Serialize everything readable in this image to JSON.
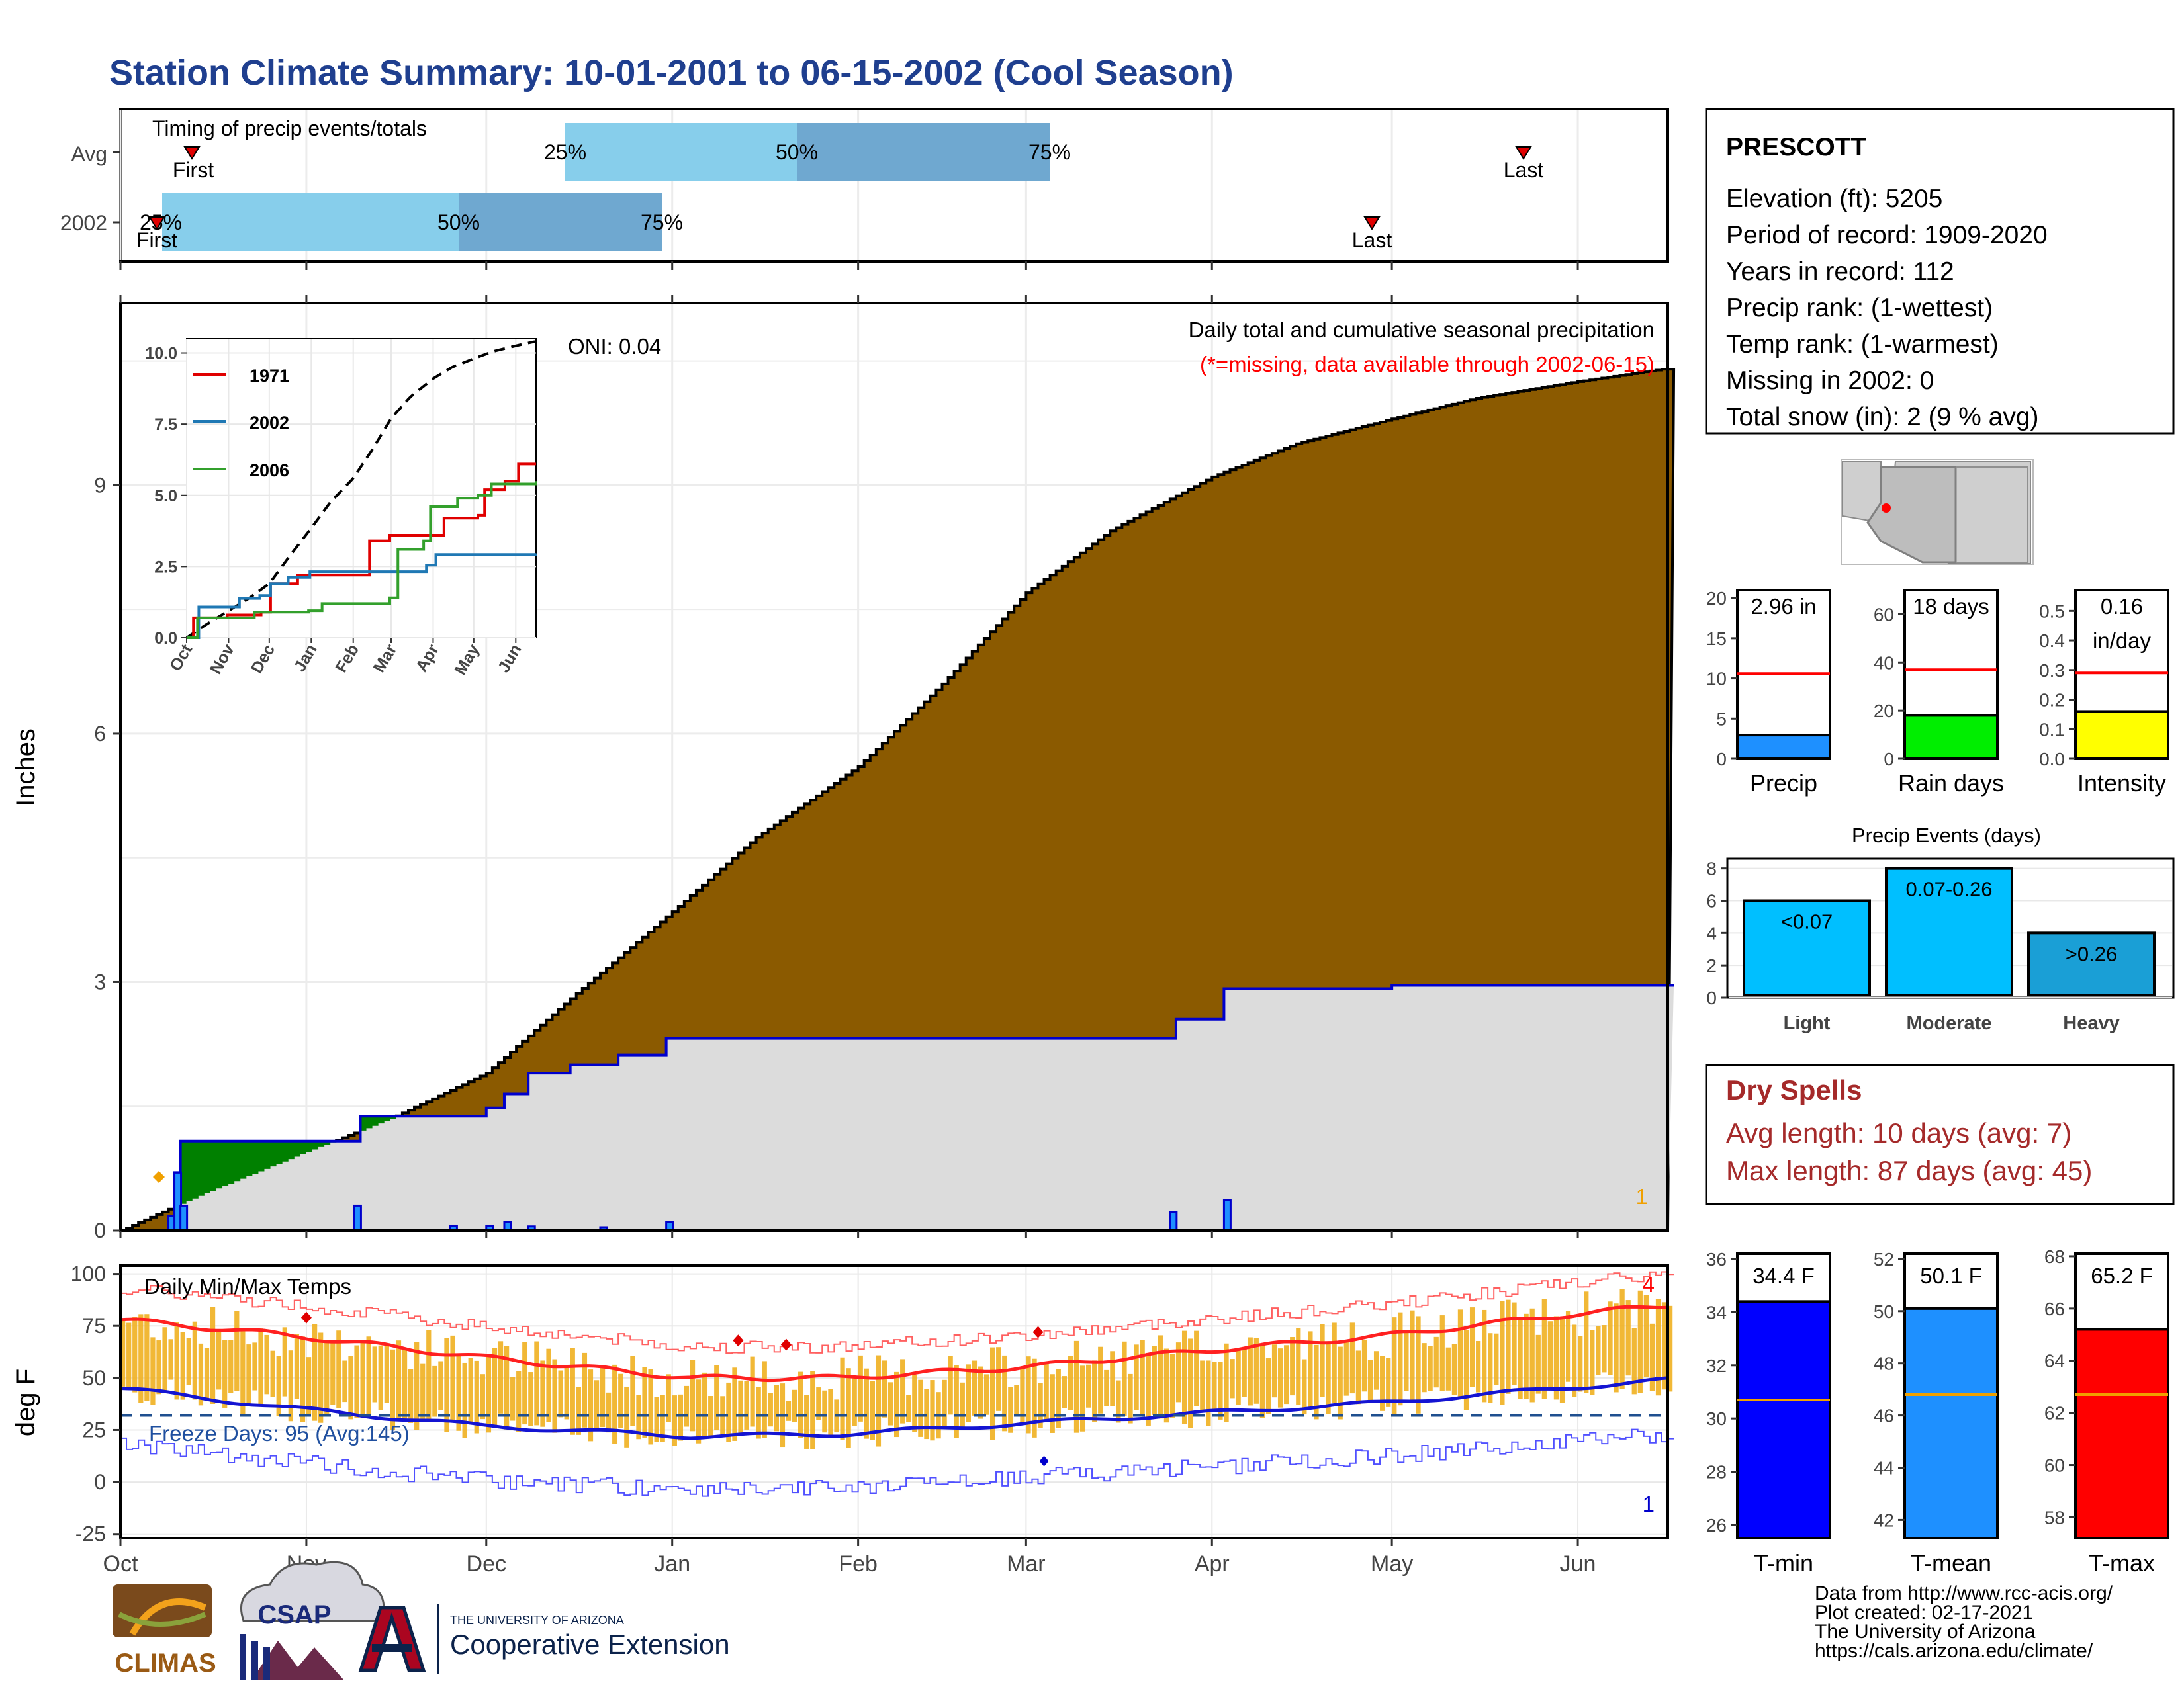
{
  "title": "Station Climate Summary: 10-01-2001 to 06-15-2002 (Cool Season)",
  "colors": {
    "title": "#1f3f8f",
    "precip_fill": "#8b5a00",
    "avg_fill": "#dcdcdc",
    "wet_fill": "#008000",
    "year_line": "#0000cc",
    "q_light": "#87ceeb",
    "q_dark": "#6fa8d0",
    "marker": "#e00000",
    "tmax_bar": "#f0b020",
    "tmin": "#1414d2",
    "tmax": "#ff2020",
    "dry": "#a52a2a"
  },
  "months": [
    "Oct",
    "Nov",
    "Dec",
    "Jan",
    "Feb",
    "Mar",
    "Apr",
    "May",
    "Jun"
  ],
  "timing": {
    "title": "Timing of precip events/totals",
    "rows": [
      {
        "label": "Avg",
        "q25": "25%",
        "q50": "50%",
        "q75": "75%",
        "first": "First",
        "last": "Last"
      },
      {
        "label": "2002",
        "q25": "25%",
        "q50": "50%",
        "q75": "75%",
        "first": "First",
        "last": "Last"
      }
    ]
  },
  "chart_data": [
    {
      "type": "area",
      "title": "Daily total and cumulative seasonal precipitation",
      "subtitle": "(*=missing, data available through 2002-06-15)",
      "ylabel": "Inches",
      "yticks": [
        "0",
        "3",
        "6",
        "9"
      ],
      "ylim": [
        0,
        11.2
      ],
      "annotations": {
        "oni": "ONI: 0.04",
        "missing_count": "1"
      },
      "cumulative_avg": {
        "dates": [
          "10-01",
          "10-15",
          "11-01",
          "11-15",
          "12-01",
          "12-15",
          "01-01",
          "01-15",
          "02-01",
          "02-15",
          "03-01",
          "03-15",
          "04-01",
          "04-15",
          "05-01",
          "05-15",
          "06-01",
          "06-15"
        ],
        "values": [
          0,
          0.45,
          0.95,
          1.35,
          1.9,
          2.8,
          3.85,
          4.75,
          5.6,
          6.6,
          7.7,
          8.45,
          9.1,
          9.5,
          9.8,
          10.05,
          10.25,
          10.4
        ]
      },
      "cumulative_2002": {
        "dates": [
          "10-01",
          "10-09",
          "10-10",
          "10-11",
          "11-09",
          "11-10",
          "11-24",
          "12-01",
          "12-04",
          "12-08",
          "12-15",
          "12-23",
          "12-31",
          "03-25",
          "03-26",
          "04-02",
          "04-03",
          "05-01",
          "06-15"
        ],
        "values": [
          0,
          0,
          0.7,
          1.08,
          1.08,
          1.38,
          1.38,
          1.48,
          1.65,
          1.9,
          2.0,
          2.12,
          2.32,
          2.32,
          2.55,
          2.55,
          2.92,
          2.96,
          2.96
        ]
      },
      "daily_2002": {
        "dates": [
          "10-09",
          "10-10",
          "10-11",
          "11-09",
          "11-25",
          "12-01",
          "12-04",
          "12-08",
          "12-20",
          "12-31",
          "03-25",
          "04-03"
        ],
        "values": [
          0.18,
          0.7,
          0.3,
          0.3,
          0.06,
          0.06,
          0.1,
          0.05,
          0.04,
          0.1,
          0.22,
          0.37
        ]
      }
    },
    {
      "type": "line",
      "title": "",
      "series": [
        {
          "name": "1971"
        },
        {
          "name": "2002"
        },
        {
          "name": "2006"
        }
      ],
      "yticks": [
        "0.0",
        "2.5",
        "5.0",
        "7.5",
        "10.0"
      ],
      "xticks": [
        "Oct",
        "Nov",
        "Dec",
        "Jan",
        "Feb",
        "Mar",
        "Apr",
        "May",
        "Jun"
      ],
      "ylim": [
        0,
        10.5
      ]
    },
    {
      "type": "line",
      "title": "Daily Min/Max Temps",
      "ylabel": "deg F",
      "yticks": [
        "-25",
        "0",
        "25",
        "50",
        "75",
        "100"
      ],
      "ylim": [
        -27,
        104
      ],
      "annotations": {
        "freeze": "Freeze Days: 95 (Avg:145)",
        "record_high_count": "4",
        "record_low_count": "1"
      }
    },
    {
      "type": "bar",
      "panels": [
        {
          "label": "Precip",
          "value_text": "2.96 in",
          "value": 2.96,
          "avg": 10.6,
          "ylim": [
            0,
            21
          ],
          "yticks": [
            "0",
            "5",
            "10",
            "15",
            "20"
          ],
          "color": "#1e90ff"
        },
        {
          "label": "Rain days",
          "value_text": "18 days",
          "value": 18,
          "avg": 37,
          "ylim": [
            0,
            70
          ],
          "yticks": [
            "0",
            "20",
            "40",
            "60"
          ],
          "color": "#00ee00"
        },
        {
          "label": "Intensity",
          "value_text": "0.16",
          "value_text2": "in/day",
          "value": 0.16,
          "avg": 0.29,
          "ylim": [
            0,
            0.57
          ],
          "yticks": [
            "0.0",
            "0.1",
            "0.2",
            "0.3",
            "0.4",
            "0.5"
          ],
          "color": "#ffff00"
        }
      ]
    },
    {
      "type": "bar",
      "title": "Precip Events (days)",
      "categories": [
        "Light",
        "Moderate",
        "Heavy"
      ],
      "values": [
        6,
        8,
        4
      ],
      "bar_labels": [
        "<0.07",
        "0.07-0.26",
        ">0.26"
      ],
      "yticks": [
        "0",
        "2",
        "4",
        "6",
        "8"
      ],
      "ylim": [
        0,
        8.6
      ]
    },
    {
      "type": "bar",
      "panels": [
        {
          "label": "T-min",
          "value_text": "34.4 F",
          "value": 34.4,
          "avg": 30.7,
          "ylim": [
            25.5,
            36.2
          ],
          "yticks": [
            "26",
            "28",
            "30",
            "32",
            "34",
            "36"
          ],
          "color": "#0000ff"
        },
        {
          "label": "T-mean",
          "value_text": "50.1 F",
          "value": 50.1,
          "avg": 46.8,
          "ylim": [
            41.3,
            52.2
          ],
          "yticks": [
            "42",
            "44",
            "46",
            "48",
            "50",
            "52"
          ],
          "color": "#1e90ff"
        },
        {
          "label": "T-max",
          "value_text": "65.2 F",
          "value": 65.2,
          "avg": 62.7,
          "ylim": [
            57.2,
            68.1
          ],
          "yticks": [
            "58",
            "60",
            "62",
            "64",
            "66",
            "68"
          ],
          "color": "#ff0000"
        }
      ]
    }
  ],
  "station": {
    "name": "PRESCOTT",
    "lines": [
      "Elevation (ft): 5205",
      "Period of record: 1909-2020",
      "Years in record: 112",
      "Precip rank:  (1-wettest)",
      "Temp rank:  (1-warmest)",
      "Missing in 2002: 0",
      "Total snow (in): 2 (9 % avg)"
    ]
  },
  "dry_spells": {
    "title": "Dry Spells",
    "avg": "Avg length: 10 days (avg: 7)",
    "max": "Max length: 87 days (avg: 45)"
  },
  "footer": {
    "lines": [
      "Data from http://www.rcc-acis.org/",
      "Plot created: 02-17-2021",
      "The University of Arizona",
      "https://cals.arizona.edu/climate/"
    ],
    "logo_climas": "CLIMAS",
    "logo_csap": "CSAP",
    "logo_ua_small": "THE UNIVERSITY OF ARIZONA",
    "logo_ua_big": "Cooperative Extension"
  }
}
